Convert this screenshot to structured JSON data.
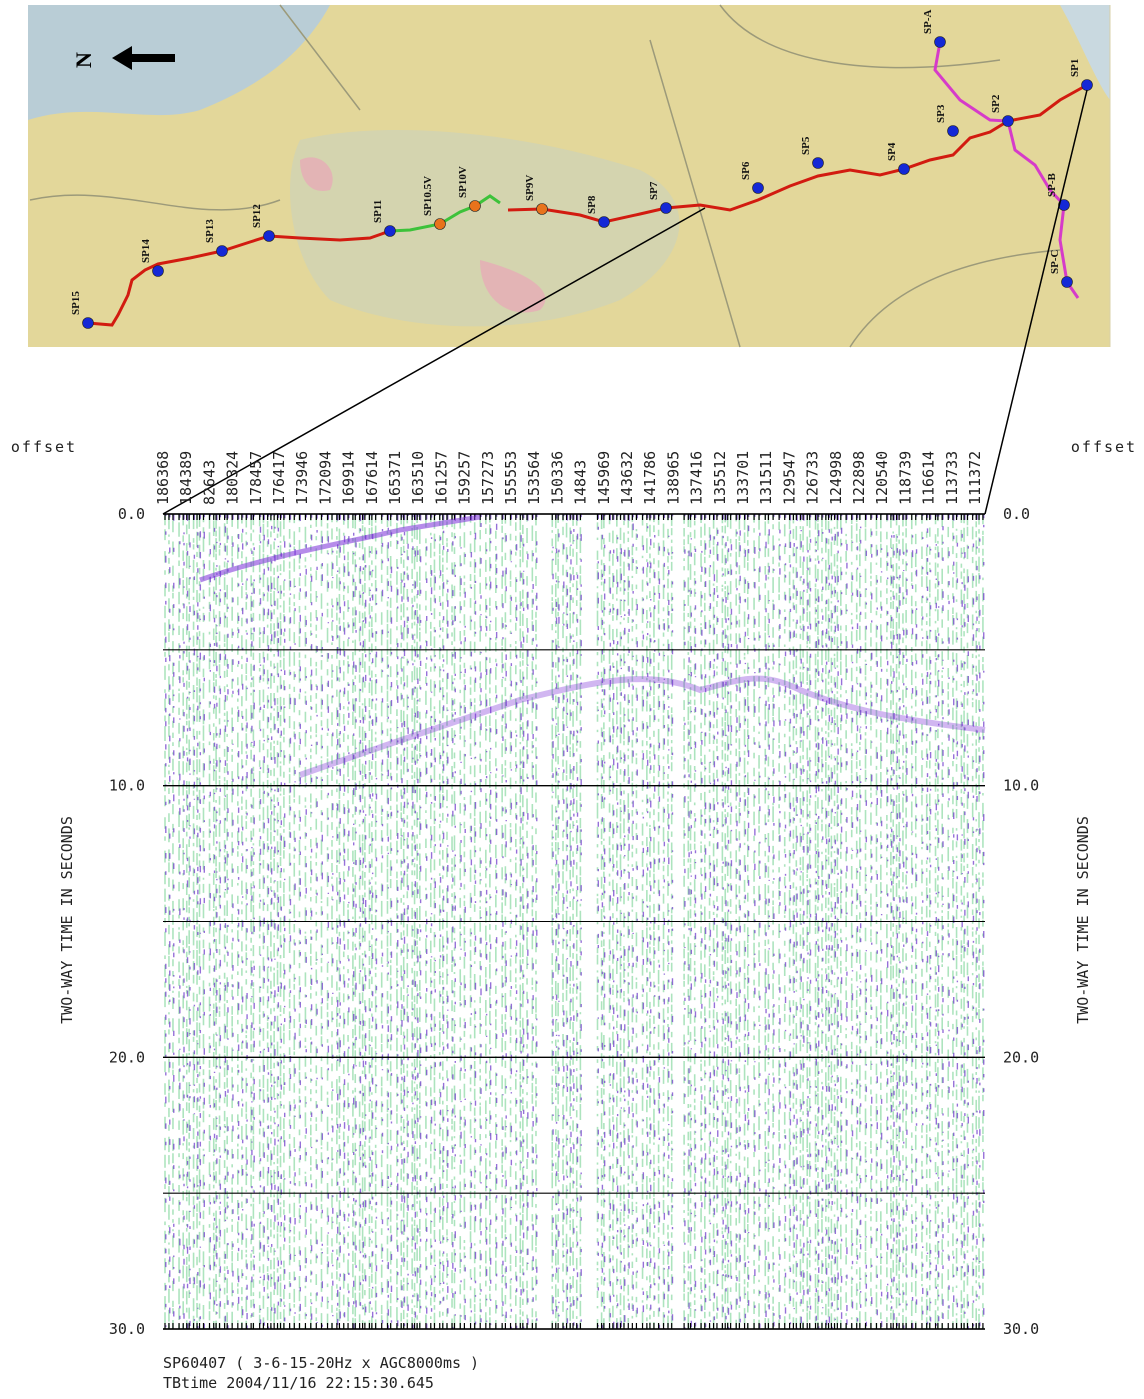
{
  "map": {
    "north": "N",
    "labels": [
      "SP15",
      "SP14",
      "SP13",
      "SP12",
      "SP11",
      "SP10.5V",
      "SP10V",
      "SP9V",
      "SP8",
      "SP7",
      "SP6",
      "SP5",
      "SP4",
      "SP3",
      "SP2",
      "SP1",
      "SP-A",
      "SP-B",
      "SP-C"
    ]
  },
  "section": {
    "offset_title": "offset",
    "offset_labels": [
      "186368",
      "184389",
      "82643",
      "180324",
      "178457",
      "176417",
      "173946",
      "172094",
      "169914",
      "167614",
      "165371",
      "163510",
      "161257",
      "159257",
      "157273",
      "155553",
      "153564",
      "150336",
      "14843",
      "145969",
      "143632",
      "141786",
      "138965",
      "137416",
      "135512",
      "133701",
      "131511",
      "129547",
      "126733",
      "124998",
      "122898",
      "120540",
      "118739",
      "116614",
      "113733",
      "111372"
    ],
    "ylabel": "TWO-WAY TIME IN SECONDS",
    "ylim": [
      0,
      30
    ],
    "yticks": [
      {
        "value": 0,
        "label": "0.0"
      },
      {
        "value": 10,
        "label": "10.0"
      },
      {
        "value": 20,
        "label": "20.0"
      },
      {
        "value": 30,
        "label": "30.0"
      }
    ],
    "minor_grid": [
      5,
      15,
      25
    ],
    "footer": [
      "SP60407 ( 3-6-15-20Hz x AGC8000ms )",
      "TBtime 2004/11/16 22:15:30.645"
    ]
  }
}
